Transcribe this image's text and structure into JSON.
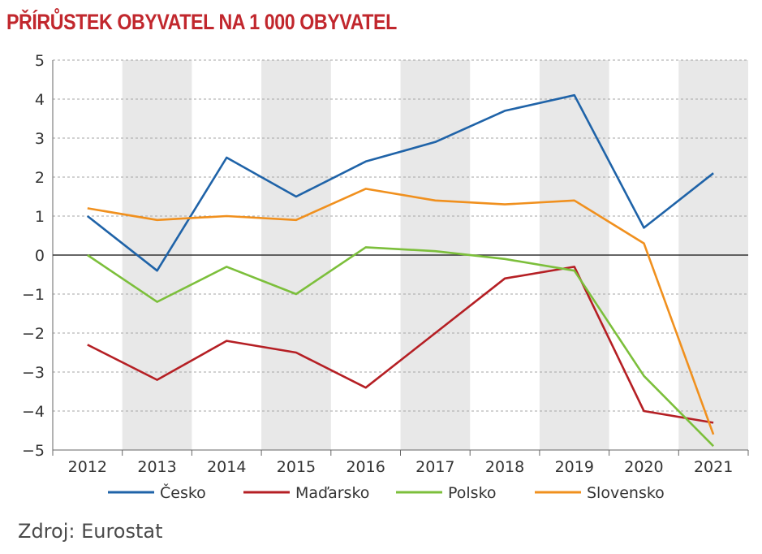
{
  "title": "PŘÍRŮSTEK OBYVATEL NA 1 000 OBYVATEL",
  "source": "Zdroj: Eurostat",
  "colors": {
    "title": "#c1272d",
    "band": "#e8e8e8",
    "grid": "#a6a6a6",
    "zero_line": "#333333"
  },
  "chart_data": {
    "type": "line",
    "categories": [
      "2012",
      "2013",
      "2014",
      "2015",
      "2016",
      "2017",
      "2018",
      "2019",
      "2020",
      "2021"
    ],
    "ylim": [
      -5,
      5
    ],
    "yticks": [
      5,
      4,
      3,
      2,
      1,
      0,
      -1,
      -2,
      -3,
      -4,
      -5
    ],
    "ytick_labels": [
      "5",
      "4",
      "3",
      "2",
      "1",
      "0",
      "−1",
      "−2",
      "−3",
      "−4",
      "−5"
    ],
    "grid": true,
    "alternating_bands": true,
    "legend_position": "bottom",
    "series": [
      {
        "name": "Česko",
        "color": "#1f63a8",
        "values": [
          1.0,
          -0.4,
          2.5,
          1.5,
          2.4,
          2.9,
          3.7,
          4.1,
          0.7,
          2.1
        ]
      },
      {
        "name": "Maďarsko",
        "color": "#b51f24",
        "values": [
          -2.3,
          -3.2,
          -2.2,
          -2.5,
          -3.4,
          -2.0,
          -0.6,
          -0.3,
          -4.0,
          -4.3
        ]
      },
      {
        "name": "Polsko",
        "color": "#7cbf3b",
        "values": [
          0.0,
          -1.2,
          -0.3,
          -1.0,
          0.2,
          0.1,
          -0.1,
          -0.4,
          -3.1,
          -4.9
        ]
      },
      {
        "name": "Slovensko",
        "color": "#f0901e",
        "values": [
          1.2,
          0.9,
          1.0,
          0.9,
          1.7,
          1.4,
          1.3,
          1.4,
          0.3,
          -4.6
        ]
      }
    ]
  }
}
